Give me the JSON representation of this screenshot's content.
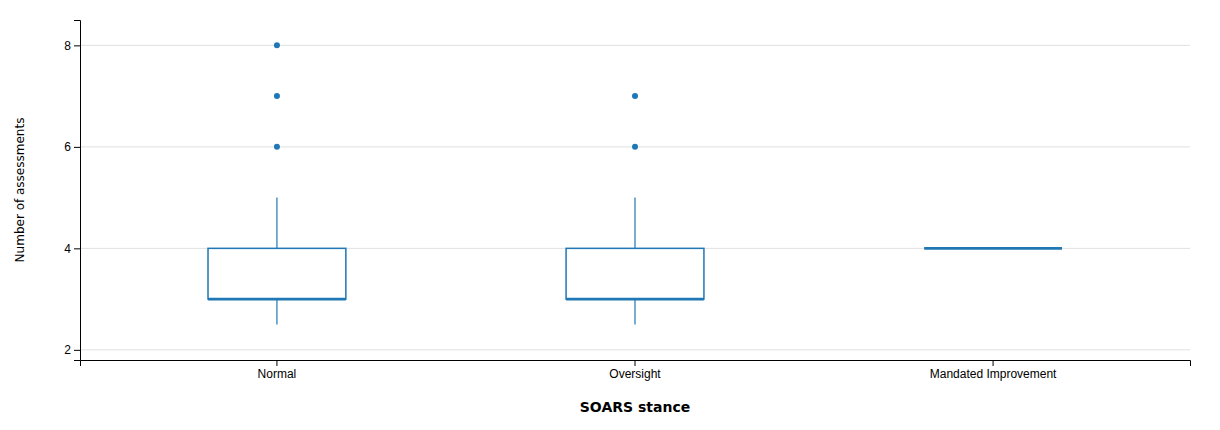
{
  "chart_data": {
    "type": "box",
    "categories": [
      "Normal",
      "Oversight",
      "Mandated Improvement"
    ],
    "q1": [
      3.0,
      3.0,
      4.0
    ],
    "median": [
      3.0,
      3.0,
      4.0
    ],
    "q3": [
      4.0,
      4.0,
      4.0
    ],
    "whisker_low": [
      2.5,
      2.5,
      4.0
    ],
    "whisker_high": [
      5.0,
      5.0,
      4.0
    ],
    "outliers": [
      [
        6.0,
        7.0,
        8.0
      ],
      [
        6.0,
        7.0
      ],
      []
    ],
    "xlabel": "SOARS stance",
    "ylabel": "Number of assessments",
    "ylim": [
      1.8,
      8.5
    ],
    "yticks": [
      2,
      4,
      6,
      8
    ],
    "grid": true
  }
}
